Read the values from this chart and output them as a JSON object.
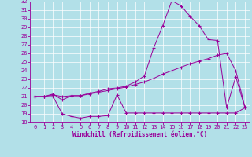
{
  "xlabel": "Windchill (Refroidissement éolien,°C)",
  "bg_color": "#b2e0e8",
  "line_color": "#990099",
  "xlim_min": -0.5,
  "xlim_max": 23.5,
  "ylim_min": 18,
  "ylim_max": 32,
  "yticks": [
    18,
    19,
    20,
    21,
    22,
    23,
    24,
    25,
    26,
    27,
    28,
    29,
    30,
    31,
    32
  ],
  "xticks": [
    0,
    1,
    2,
    3,
    4,
    5,
    6,
    7,
    8,
    9,
    10,
    11,
    12,
    13,
    14,
    15,
    16,
    17,
    18,
    19,
    20,
    21,
    22,
    23
  ],
  "line1_x": [
    0,
    1,
    2,
    3,
    4,
    5,
    6,
    7,
    8,
    9,
    10,
    11,
    12,
    13,
    14,
    15,
    16,
    17,
    18,
    19,
    20,
    21,
    22,
    23
  ],
  "line1_y": [
    21.0,
    21.0,
    21.0,
    19.0,
    18.7,
    18.5,
    18.7,
    18.7,
    18.8,
    21.2,
    19.1,
    19.1,
    19.1,
    19.1,
    19.1,
    19.1,
    19.1,
    19.1,
    19.1,
    19.1,
    19.1,
    19.1,
    19.1,
    19.7
  ],
  "line2_x": [
    0,
    1,
    2,
    3,
    4,
    5,
    6,
    7,
    8,
    9,
    10,
    11,
    12,
    13,
    14,
    15,
    16,
    17,
    18,
    19,
    20,
    21,
    22,
    23
  ],
  "line2_y": [
    21.0,
    21.0,
    21.2,
    21.0,
    21.1,
    21.1,
    21.3,
    21.5,
    21.7,
    21.9,
    22.1,
    22.4,
    22.7,
    23.1,
    23.6,
    24.0,
    24.4,
    24.8,
    25.1,
    25.4,
    25.8,
    26.0,
    24.0,
    19.8
  ],
  "line3_x": [
    0,
    1,
    2,
    3,
    4,
    5,
    6,
    7,
    8,
    9,
    10,
    11,
    12,
    13,
    14,
    15,
    16,
    17,
    18,
    19,
    20,
    21,
    22,
    23
  ],
  "line3_y": [
    21.0,
    21.0,
    21.3,
    20.6,
    21.1,
    21.1,
    21.4,
    21.6,
    21.9,
    22.0,
    22.2,
    22.7,
    23.4,
    26.6,
    29.2,
    32.1,
    31.5,
    30.3,
    29.2,
    27.6,
    27.5,
    19.7,
    23.3,
    19.7
  ]
}
